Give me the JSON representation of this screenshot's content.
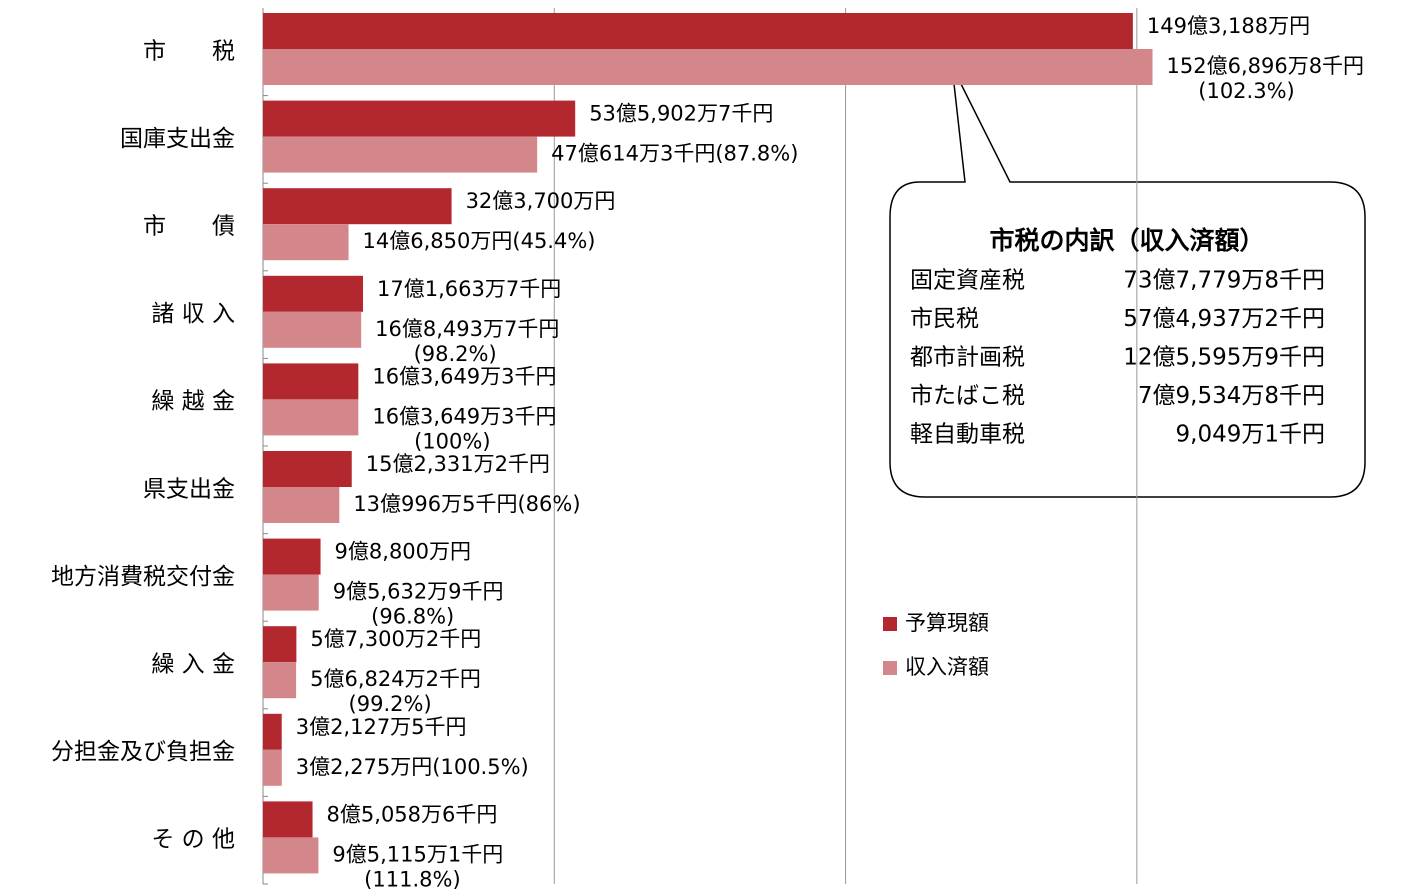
{
  "chart_data": {
    "type": "hbar",
    "categories": [
      "市　　税",
      "国庫支出金",
      "市　　債",
      "諸 収 入",
      "繰 越 金",
      "県支出金",
      "地方消費税交付金",
      "繰 入 金",
      "分担金及び負担金",
      "そ の 他"
    ],
    "series": [
      {
        "name": "予算現額",
        "color": "#b3282e",
        "values": [
          14931880000,
          5359027000,
          3237000000,
          1716637000,
          1636493000,
          1523312000,
          988000000,
          573002000,
          321275000,
          850586000
        ],
        "value_labels": [
          "149億3,188万円",
          "53億5,902万7千円",
          "32億3,700万円",
          "17億1,663万7千円",
          "16億3,649万3千円",
          "15億2,331万2千円",
          "9億8,800万円",
          "5億7,300万2千円",
          "3億2,127万5千円",
          "8億5,058万6千円"
        ]
      },
      {
        "name": "収入済額",
        "color": "#d3878a",
        "values": [
          15268968000,
          4706143000,
          1468500000,
          1684937000,
          1636493000,
          1309965000,
          956329000,
          568242000,
          322750000,
          951151000
        ],
        "value_labels": [
          "152億6,896万8千円",
          "47億614万3千円",
          "14億6,850万円",
          "16億8,493万7千円",
          "16億3,649万3千円",
          "13億996万5千円",
          "9億5,632万9千円",
          "5億6,824万2千円",
          "3億2,275万円",
          "9億5,115万1千円"
        ],
        "ratio_labels": [
          "(102.3%)",
          "(87.8%)",
          "(45.4%)",
          "(98.2%)",
          "(100%)",
          "(86%)",
          "(96.8%)",
          "(99.2%)",
          "(100.5%)",
          "(111.8%)"
        ]
      }
    ],
    "xlim": [
      0,
      19500000000
    ],
    "xticks": [
      0,
      5000000000,
      10000000000,
      15000000000
    ],
    "grid": true,
    "callout": {
      "title": "市税の内訳（収入済額）",
      "rows": [
        [
          "固定資産税",
          "73億7,779万8千円"
        ],
        [
          "市民税",
          "57億4,937万2千円"
        ],
        [
          "都市計画税",
          "12億5,595万9千円"
        ],
        [
          "市たばこ税",
          "7億9,534万8千円"
        ],
        [
          "軽自動車税",
          "9,049万1千円"
        ]
      ]
    }
  }
}
